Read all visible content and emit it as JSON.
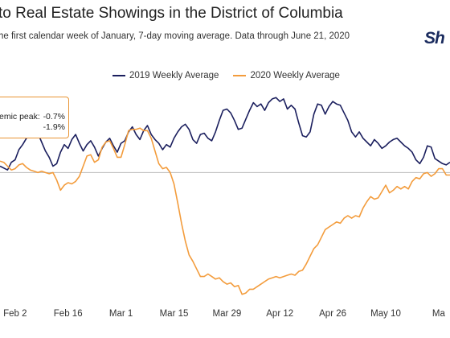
{
  "header": {
    "title": "to Real Estate Showings in the District of Columbia",
    "subtitle": "he first calendar week of January, 7-day moving average. Data through June 21, 2020",
    "logo_text": "Sh"
  },
  "tooltip": {
    "label": "emic peak:",
    "value_2019": "-0.7%",
    "value_2020": "-1.9%"
  },
  "colors": {
    "series_2019": "#1b1f5e",
    "series_2020": "#f39c3c",
    "baseline": "#bbbbbb",
    "tooltip_border": "#e89433"
  },
  "chart_data": {
    "type": "line",
    "title": "",
    "xlabel": "",
    "ylabel": "",
    "x_ticks": [
      "Feb 2",
      "Feb 16",
      "Mar 1",
      "Mar 15",
      "Mar 29",
      "Apr 12",
      "Apr 26",
      "May 10",
      "Ma"
    ],
    "x_tick_days": [
      33,
      47,
      61,
      75,
      89,
      103,
      117,
      131,
      145
    ],
    "x_range_days": [
      29,
      148
    ],
    "y_range": [
      -100,
      70
    ],
    "baseline_value": 0,
    "grid": false,
    "legend_position": "top",
    "series": [
      {
        "name": "2019 Weekly Average",
        "points": [
          [
            29,
            5
          ],
          [
            31,
            2
          ],
          [
            32,
            8
          ],
          [
            33,
            10
          ],
          [
            34,
            18
          ],
          [
            35,
            22
          ],
          [
            36,
            27
          ],
          [
            37,
            31
          ],
          [
            38,
            33
          ],
          [
            39,
            31
          ],
          [
            40,
            24
          ],
          [
            41,
            17
          ],
          [
            42,
            12
          ],
          [
            43,
            5
          ],
          [
            44,
            7
          ],
          [
            45,
            16
          ],
          [
            46,
            22
          ],
          [
            47,
            19
          ],
          [
            48,
            26
          ],
          [
            49,
            30
          ],
          [
            50,
            23
          ],
          [
            51,
            17
          ],
          [
            52,
            22
          ],
          [
            53,
            25
          ],
          [
            54,
            20
          ],
          [
            55,
            13
          ],
          [
            56,
            19
          ],
          [
            57,
            24
          ],
          [
            58,
            27
          ],
          [
            59,
            21
          ],
          [
            60,
            16
          ],
          [
            61,
            23
          ],
          [
            62,
            25
          ],
          [
            63,
            32
          ],
          [
            64,
            36
          ],
          [
            65,
            30
          ],
          [
            66,
            26
          ],
          [
            67,
            33
          ],
          [
            68,
            37
          ],
          [
            69,
            30
          ],
          [
            70,
            26
          ],
          [
            71,
            23
          ],
          [
            72,
            18
          ],
          [
            73,
            22
          ],
          [
            74,
            20
          ],
          [
            75,
            27
          ],
          [
            76,
            32
          ],
          [
            77,
            36
          ],
          [
            78,
            38
          ],
          [
            79,
            34
          ],
          [
            80,
            26
          ],
          [
            81,
            23
          ],
          [
            82,
            30
          ],
          [
            83,
            31
          ],
          [
            84,
            27
          ],
          [
            85,
            25
          ],
          [
            86,
            32
          ],
          [
            87,
            41
          ],
          [
            88,
            49
          ],
          [
            89,
            50
          ],
          [
            90,
            47
          ],
          [
            91,
            41
          ],
          [
            92,
            34
          ],
          [
            93,
            35
          ],
          [
            94,
            42
          ],
          [
            95,
            49
          ],
          [
            96,
            55
          ],
          [
            97,
            52
          ],
          [
            98,
            54
          ],
          [
            99,
            49
          ],
          [
            100,
            55
          ],
          [
            101,
            58
          ],
          [
            102,
            59
          ],
          [
            103,
            56
          ],
          [
            104,
            58
          ],
          [
            105,
            50
          ],
          [
            106,
            53
          ],
          [
            107,
            50
          ],
          [
            108,
            39
          ],
          [
            109,
            29
          ],
          [
            110,
            28
          ],
          [
            111,
            32
          ],
          [
            112,
            46
          ],
          [
            113,
            54
          ],
          [
            114,
            53
          ],
          [
            115,
            46
          ],
          [
            116,
            52
          ],
          [
            117,
            56
          ],
          [
            118,
            54
          ],
          [
            119,
            53
          ],
          [
            120,
            47
          ],
          [
            121,
            41
          ],
          [
            122,
            32
          ],
          [
            123,
            28
          ],
          [
            124,
            32
          ],
          [
            125,
            27
          ],
          [
            126,
            24
          ],
          [
            127,
            21
          ],
          [
            128,
            26
          ],
          [
            129,
            23
          ],
          [
            130,
            19
          ],
          [
            131,
            21
          ],
          [
            132,
            24
          ],
          [
            133,
            26
          ],
          [
            134,
            27
          ],
          [
            135,
            24
          ],
          [
            136,
            21
          ],
          [
            137,
            19
          ],
          [
            138,
            16
          ],
          [
            139,
            10
          ],
          [
            140,
            7
          ],
          [
            141,
            12
          ],
          [
            142,
            21
          ],
          [
            143,
            20
          ],
          [
            144,
            11
          ],
          [
            145,
            9
          ],
          [
            146,
            7
          ],
          [
            147,
            6
          ],
          [
            148,
            8
          ]
        ]
      },
      {
        "name": "2020 Weekly Average",
        "points": [
          [
            29,
            9
          ],
          [
            30,
            8
          ],
          [
            31,
            5
          ],
          [
            32,
            2
          ],
          [
            33,
            3
          ],
          [
            34,
            6
          ],
          [
            35,
            7
          ],
          [
            36,
            4
          ],
          [
            37,
            2
          ],
          [
            38,
            1
          ],
          [
            39,
            0
          ],
          [
            40,
            1
          ],
          [
            41,
            0
          ],
          [
            42,
            -1
          ],
          [
            43,
            0
          ],
          [
            44,
            -6
          ],
          [
            45,
            -14
          ],
          [
            46,
            -10
          ],
          [
            47,
            -8
          ],
          [
            48,
            -9
          ],
          [
            49,
            -7
          ],
          [
            50,
            -3
          ],
          [
            51,
            5
          ],
          [
            52,
            13
          ],
          [
            53,
            14
          ],
          [
            54,
            8
          ],
          [
            55,
            10
          ],
          [
            56,
            20
          ],
          [
            57,
            24
          ],
          [
            58,
            25
          ],
          [
            59,
            19
          ],
          [
            60,
            12
          ],
          [
            61,
            12
          ],
          [
            62,
            22
          ],
          [
            63,
            33
          ],
          [
            64,
            34
          ],
          [
            65,
            34
          ],
          [
            66,
            35
          ],
          [
            67,
            33
          ],
          [
            68,
            33
          ],
          [
            69,
            27
          ],
          [
            70,
            17
          ],
          [
            71,
            7
          ],
          [
            72,
            3
          ],
          [
            73,
            4
          ],
          [
            74,
            0
          ],
          [
            75,
            -9
          ],
          [
            76,
            -24
          ],
          [
            77,
            -40
          ],
          [
            78,
            -54
          ],
          [
            79,
            -65
          ],
          [
            80,
            -70
          ],
          [
            81,
            -76
          ],
          [
            82,
            -82
          ],
          [
            83,
            -82
          ],
          [
            84,
            -80
          ],
          [
            85,
            -82
          ],
          [
            86,
            -84
          ],
          [
            87,
            -83
          ],
          [
            88,
            -86
          ],
          [
            89,
            -88
          ],
          [
            90,
            -87
          ],
          [
            91,
            -90
          ],
          [
            92,
            -89
          ],
          [
            93,
            -96
          ],
          [
            94,
            -95
          ],
          [
            95,
            -92
          ],
          [
            96,
            -92
          ],
          [
            97,
            -90
          ],
          [
            98,
            -88
          ],
          [
            99,
            -86
          ],
          [
            100,
            -84
          ],
          [
            101,
            -83
          ],
          [
            102,
            -82
          ],
          [
            103,
            -83
          ],
          [
            104,
            -82
          ],
          [
            105,
            -81
          ],
          [
            106,
            -80
          ],
          [
            107,
            -81
          ],
          [
            108,
            -78
          ],
          [
            109,
            -77
          ],
          [
            110,
            -72
          ],
          [
            111,
            -66
          ],
          [
            112,
            -60
          ],
          [
            113,
            -57
          ],
          [
            114,
            -51
          ],
          [
            115,
            -45
          ],
          [
            116,
            -43
          ],
          [
            117,
            -41
          ],
          [
            118,
            -39
          ],
          [
            119,
            -40
          ],
          [
            120,
            -36
          ],
          [
            121,
            -34
          ],
          [
            122,
            -36
          ],
          [
            123,
            -34
          ],
          [
            124,
            -35
          ],
          [
            125,
            -28
          ],
          [
            126,
            -23
          ],
          [
            127,
            -19
          ],
          [
            128,
            -21
          ],
          [
            129,
            -20
          ],
          [
            130,
            -15
          ],
          [
            131,
            -10
          ],
          [
            132,
            -16
          ],
          [
            133,
            -14
          ],
          [
            134,
            -11
          ],
          [
            135,
            -13
          ],
          [
            136,
            -11
          ],
          [
            137,
            -13
          ],
          [
            138,
            -7
          ],
          [
            139,
            -4
          ],
          [
            140,
            -5
          ],
          [
            141,
            -1
          ],
          [
            142,
            0
          ],
          [
            143,
            -3
          ],
          [
            144,
            -1
          ],
          [
            145,
            3
          ],
          [
            146,
            3
          ],
          [
            147,
            -2
          ],
          [
            148,
            -2
          ]
        ]
      }
    ]
  }
}
